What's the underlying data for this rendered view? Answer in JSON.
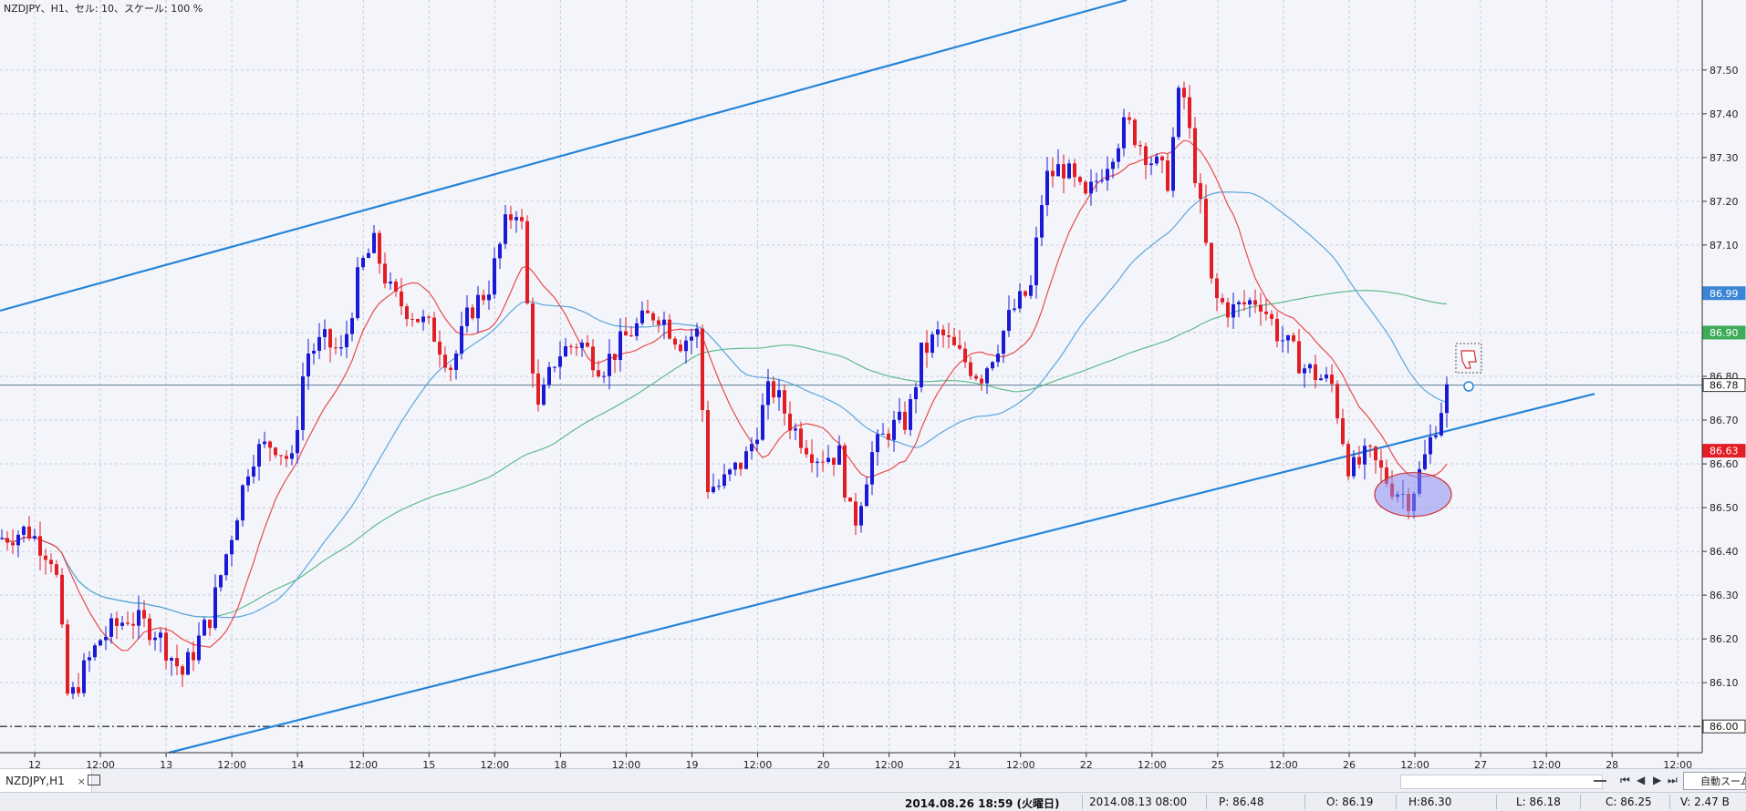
{
  "window": {
    "title": "NZDJPY、H1、セル: 10、スケール: 100 %"
  },
  "tab": {
    "label": "NZDJPY,H1",
    "close_glyph": "×"
  },
  "price_axis": {
    "labels": [
      "87.50",
      "87.40",
      "87.30",
      "87.20",
      "87.10",
      "86.90",
      "86.80",
      "86.70",
      "86.60",
      "86.50",
      "86.40",
      "86.30",
      "86.20",
      "86.10"
    ],
    "markers": [
      {
        "value": "86.99",
        "color": "#3a86d6"
      },
      {
        "value": "86.90",
        "color": "#3cab5a"
      },
      {
        "value": "86.78",
        "color": "#ffffff"
      },
      {
        "value": "86.63",
        "color": "#e21d24"
      },
      {
        "value": "86.00",
        "color": "#ffffff"
      }
    ]
  },
  "time_axis": {
    "labels": [
      "12",
      "12:00",
      "13",
      "12:00",
      "14",
      "12:00",
      "15",
      "12:00",
      "18",
      "12:00",
      "19",
      "12:00",
      "20",
      "12:00",
      "21",
      "12:00",
      "22",
      "12:00",
      "25",
      "12:00",
      "26",
      "12:00",
      "27",
      "12:00",
      "28",
      "12:00"
    ]
  },
  "chart_data": {
    "type": "candlestick",
    "symbol": "NZDJPY",
    "timeframe": "H1",
    "ylim": [
      85.94,
      87.66
    ],
    "grid": true,
    "current_price": 86.78,
    "support_level": 86.0
  },
  "colors": {
    "up_candle": "#1a1ad6",
    "down_candle": "#e21d24",
    "ma_short": "#e84b4b",
    "ma_mid": "#5aa6dc",
    "ma_long": "#5dbb8a",
    "trend": "#2584d8",
    "background": "#f4f5fb"
  },
  "status": {
    "datetime": "2014.08.26 18:59 (火曜日)",
    "cursor_time": "2014.08.13 08:00",
    "p": "P: 86.48",
    "o": "O: 86.19",
    "h": "H:86.30",
    "l": "L: 86.18",
    "c": "C: 86.25",
    "v": "V: 2.47 B"
  },
  "toolbar": {
    "realtime_button": "自動スーム"
  }
}
